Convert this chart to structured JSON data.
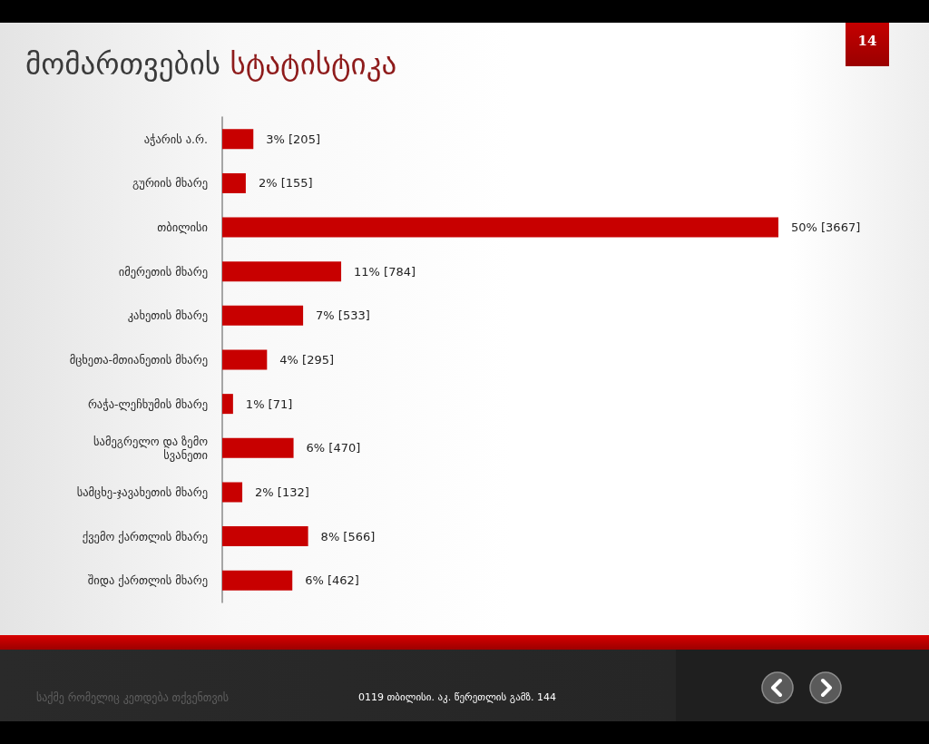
{
  "chart_data": {
    "type": "bar",
    "orientation": "horizontal",
    "title": "მომართვების სტატისტიკა",
    "categories": [
      "აჭარის ა.რ.",
      "გურიის მხარე",
      "თბილისი",
      "იმერეთის მხარე",
      "კახეთის მხარე",
      "მცხეთა-მთიანეთის მხარე",
      "რაჭა-ლეჩხუმის მხარე",
      "სამეგრელო და ზემო სვანეთი",
      "სამცხე-ჯავახეთის მხარე",
      "ქვემო ქართლის მხარე",
      "შიდა ქართლის მხარე"
    ],
    "values": [
      205,
      155,
      3667,
      784,
      533,
      295,
      71,
      470,
      132,
      566,
      462
    ],
    "value_labels": [
      "3% [205]",
      "2% [155]",
      "50% [3667]",
      "11% [784]",
      "7% [533]",
      "4% [295]",
      "1% [71]",
      "6% [470]",
      "2% [132]",
      "8% [566]",
      "6% [462]"
    ],
    "color": "#c80000",
    "annotations": [
      "14",
      "საქმე რომელიც კეთდება თქვენთვის",
      "0119 თბილისი. აკ. წერეთლის გამზ. 144"
    ]
  }
}
